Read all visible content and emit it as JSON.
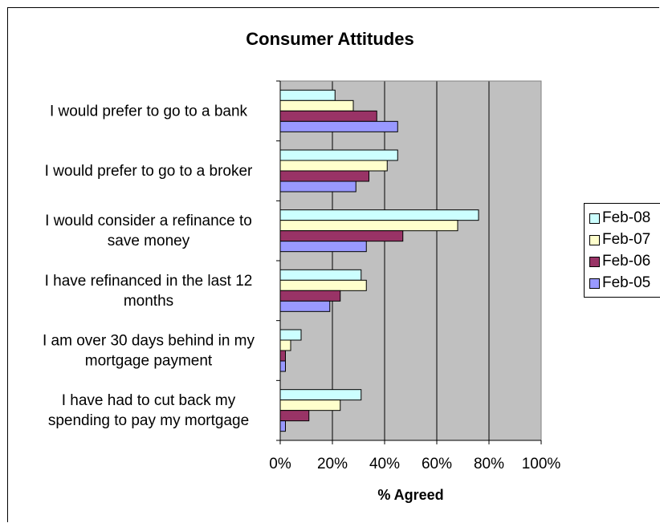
{
  "chart_data": {
    "type": "bar",
    "orientation": "horizontal",
    "title": "Consumer Attitudes",
    "xlabel": "% Agreed",
    "ylabel": "",
    "xlim": [
      0,
      100
    ],
    "x_ticks": [
      "0%",
      "20%",
      "40%",
      "60%",
      "80%",
      "100%"
    ],
    "grid": true,
    "legend_position": "right",
    "categories": [
      [
        "I would prefer to go to a bank"
      ],
      [
        "I would prefer to go to a broker"
      ],
      [
        "I would consider a refinance to",
        "save money"
      ],
      [
        "I have refinanced in the last 12",
        "months"
      ],
      [
        "I am over 30 days behind in my",
        "mortgage payment"
      ],
      [
        "I have had to cut back my",
        "spending to pay my mortgage"
      ]
    ],
    "series": [
      {
        "name": "Feb-08",
        "color": "#CCFFFF",
        "values": [
          21,
          45,
          76,
          31,
          8,
          31
        ]
      },
      {
        "name": "Feb-07",
        "color": "#FFFFCC",
        "values": [
          28,
          41,
          68,
          33,
          4,
          23
        ]
      },
      {
        "name": "Feb-06",
        "color": "#993366",
        "values": [
          37,
          34,
          47,
          23,
          2,
          11
        ]
      },
      {
        "name": "Feb-05",
        "color": "#9999FF",
        "values": [
          45,
          29,
          33,
          19,
          2,
          2
        ]
      }
    ],
    "plot_background": "#C0C0C0"
  }
}
